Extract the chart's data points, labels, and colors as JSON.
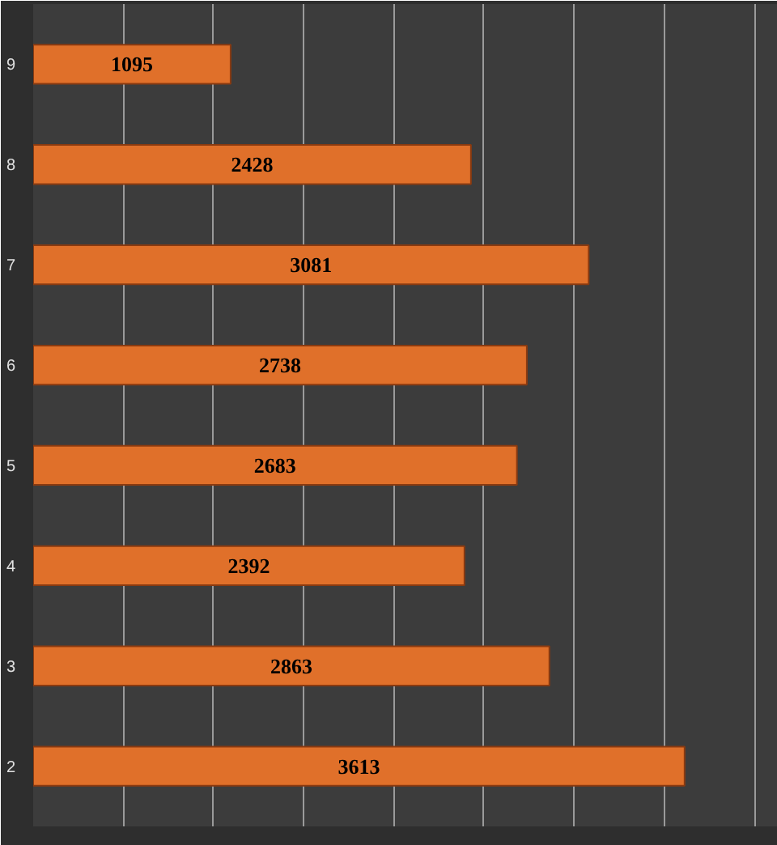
{
  "chart_data": {
    "type": "bar",
    "orientation": "horizontal",
    "categories": [
      "9",
      "8",
      "7",
      "6",
      "5",
      "4",
      "3",
      "2"
    ],
    "values": [
      1095,
      2428,
      3081,
      2738,
      2683,
      2392,
      2863,
      3613
    ],
    "color": "#e0702a",
    "data_labels": true,
    "xlim": [
      0,
      4130
    ],
    "xticks": [
      {
        "value": 500,
        "label": null
      },
      {
        "value": 1000,
        "label": null
      },
      {
        "value": 1500,
        "label": null
      },
      {
        "value": 2000,
        "label": null
      },
      {
        "value": 2500,
        "label": null
      },
      {
        "value": 3000,
        "label": null
      },
      {
        "value": 3500,
        "label": null
      },
      {
        "value": 4000,
        "label": null
      }
    ],
    "tick_labels": "y",
    "grid": "x"
  }
}
